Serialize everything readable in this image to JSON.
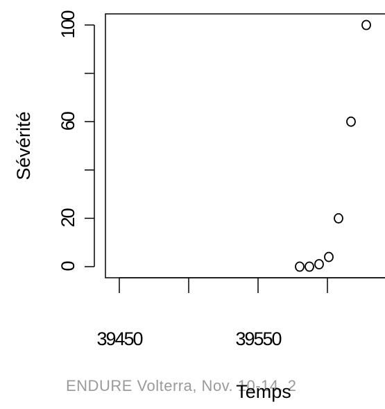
{
  "chart_data": {
    "type": "scatter",
    "x_label": "Temps",
    "y_label": "Sévérité",
    "footer": "ENDURE  Volterra, Nov. 10-14, 2",
    "x": [
      39580,
      39587,
      39594,
      39601,
      39608,
      39617,
      39628
    ],
    "values": [
      0,
      0,
      1,
      4,
      20,
      60,
      100
    ],
    "xlim": [
      39440,
      39660
    ],
    "ylim": [
      -4.6,
      104.6
    ],
    "xticks": [
      39450,
      39550
    ],
    "xminor_ticks": [
      39500,
      39600
    ],
    "yticks": [
      0,
      20,
      60,
      100
    ],
    "yminor_ticks": [
      40,
      80
    ],
    "marker": "open-circle",
    "color": "#000000",
    "grid": false
  }
}
